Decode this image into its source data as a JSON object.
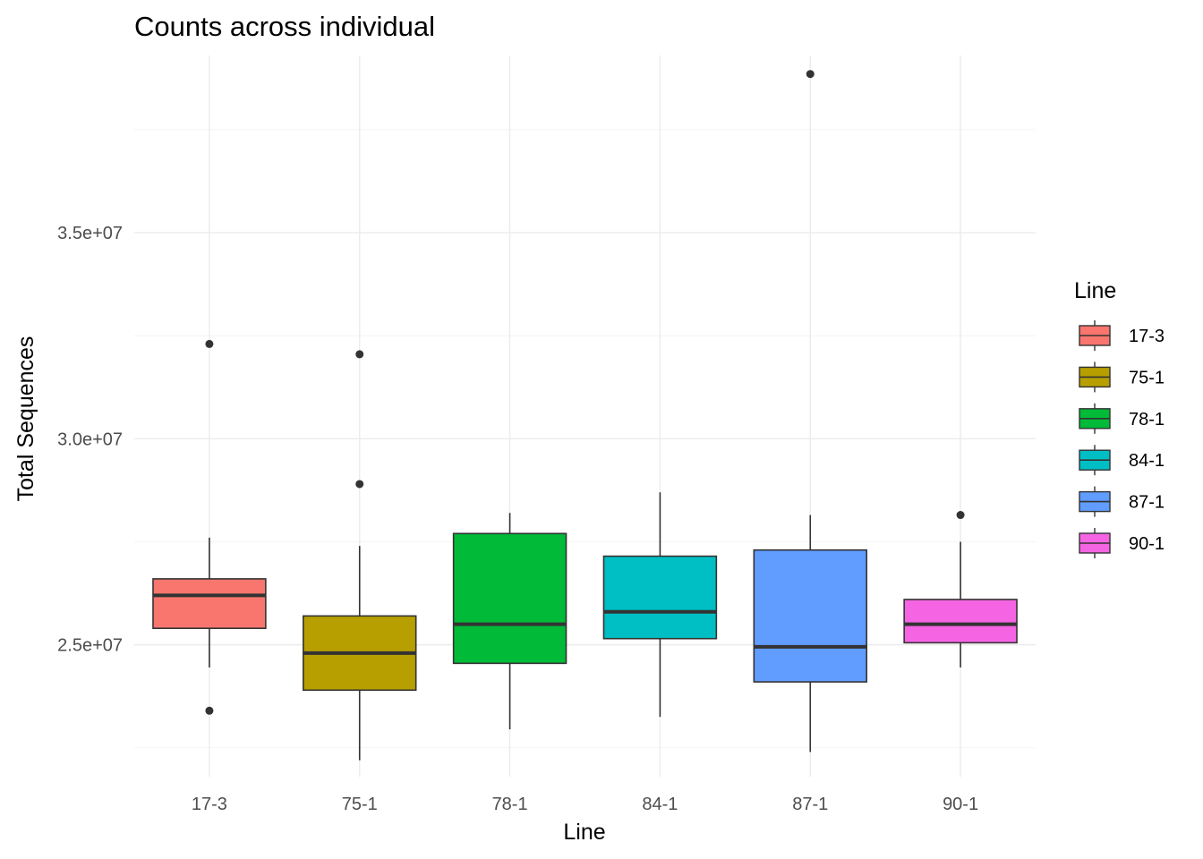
{
  "chart_data": {
    "type": "boxplot",
    "title": "Counts across individual",
    "xlabel": "Line",
    "ylabel": "Total Sequences",
    "categories": [
      "17-3",
      "75-1",
      "78-1",
      "84-1",
      "87-1",
      "90-1"
    ],
    "y_ticks": [
      25000000,
      30000000,
      35000000
    ],
    "y_tick_labels": [
      "2.5e+07",
      "3.0e+07",
      "3.5e+07"
    ],
    "y_minor_ticks": [
      22500000,
      27500000,
      32500000,
      37500000
    ],
    "ylim": [
      21800000,
      39300000
    ],
    "grid": true,
    "legend": {
      "title": "Line",
      "position": "right",
      "entries": [
        "17-3",
        "75-1",
        "78-1",
        "84-1",
        "87-1",
        "90-1"
      ]
    },
    "colors": [
      "#F8766D",
      "#B79F00",
      "#00BA38",
      "#00BFC4",
      "#619CFF",
      "#F564E3"
    ],
    "series": [
      {
        "category": "17-3",
        "whisker_low": 24450000,
        "q1": 25400000,
        "median": 26200000,
        "q3": 26600000,
        "whisker_high": 27600000,
        "outliers": [
          32300000,
          23400000
        ]
      },
      {
        "category": "75-1",
        "whisker_low": 22200000,
        "q1": 23900000,
        "median": 24800000,
        "q3": 25700000,
        "whisker_high": 27400000,
        "outliers": [
          32050000,
          28900000
        ]
      },
      {
        "category": "78-1",
        "whisker_low": 22950000,
        "q1": 24550000,
        "median": 25500000,
        "q3": 27700000,
        "whisker_high": 28200000,
        "outliers": []
      },
      {
        "category": "84-1",
        "whisker_low": 23250000,
        "q1": 25150000,
        "median": 25800000,
        "q3": 27150000,
        "whisker_high": 28700000,
        "outliers": []
      },
      {
        "category": "87-1",
        "whisker_low": 22400000,
        "q1": 24100000,
        "median": 24950000,
        "q3": 27300000,
        "whisker_high": 28150000,
        "outliers": [
          38850000
        ]
      },
      {
        "category": "90-1",
        "whisker_low": 24450000,
        "q1": 25050000,
        "median": 25500000,
        "q3": 26100000,
        "whisker_high": 27500000,
        "outliers": [
          28150000
        ]
      }
    ]
  }
}
